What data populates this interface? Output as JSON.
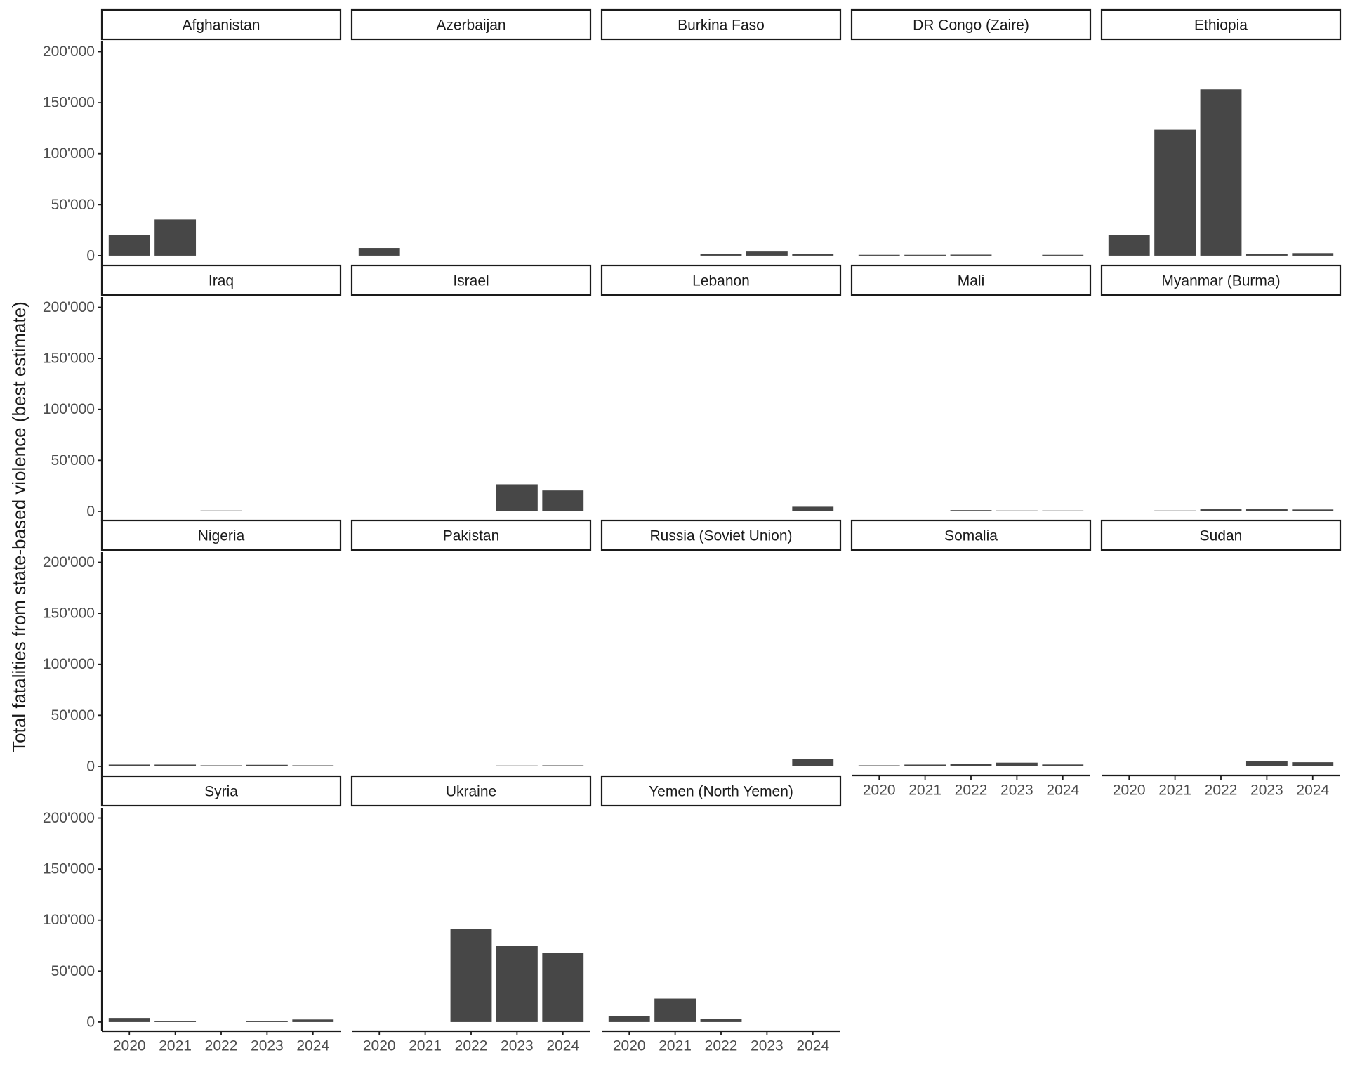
{
  "chart_data": {
    "type": "bar",
    "ylabel": "Total fatalities from state-based violence (best estimate)",
    "xlabel": "",
    "title": "",
    "categories": [
      "2020",
      "2021",
      "2022",
      "2023",
      "2024"
    ],
    "y_ticks": [
      0,
      50000,
      100000,
      150000,
      200000
    ],
    "y_tick_labels": [
      "0",
      "50'000",
      "100'000",
      "150'000",
      "200'000"
    ],
    "ylim": [
      -9000,
      210000
    ],
    "bar_color": "#474747",
    "facets": [
      {
        "name": "Afghanistan",
        "values": [
          20000,
          35500,
          null,
          null,
          null
        ]
      },
      {
        "name": "Azerbaijan",
        "values": [
          7500,
          null,
          null,
          null,
          null
        ]
      },
      {
        "name": "Burkina Faso",
        "values": [
          null,
          null,
          2000,
          4000,
          2000
        ]
      },
      {
        "name": "DR Congo (Zaire)",
        "values": [
          500,
          600,
          1000,
          null,
          400
        ]
      },
      {
        "name": "Ethiopia",
        "values": [
          20500,
          123500,
          163000,
          1500,
          2500
        ]
      },
      {
        "name": "Iraq",
        "values": [
          null,
          null,
          400,
          null,
          null
        ]
      },
      {
        "name": "Israel",
        "values": [
          null,
          null,
          null,
          26500,
          20500
        ]
      },
      {
        "name": "Lebanon",
        "values": [
          null,
          null,
          null,
          null,
          4500
        ]
      },
      {
        "name": "Mali",
        "values": [
          null,
          null,
          1200,
          700,
          500
        ]
      },
      {
        "name": "Myanmar (Burma)",
        "values": [
          null,
          500,
          2000,
          2000,
          1800
        ]
      },
      {
        "name": "Nigeria",
        "values": [
          1700,
          1700,
          1000,
          1500,
          1000
        ]
      },
      {
        "name": "Pakistan",
        "values": [
          null,
          null,
          null,
          500,
          1000
        ]
      },
      {
        "name": "Russia (Soviet Union)",
        "values": [
          null,
          null,
          null,
          null,
          7000
        ]
      },
      {
        "name": "Somalia",
        "values": [
          1000,
          1700,
          2600,
          3600,
          1800
        ]
      },
      {
        "name": "Sudan",
        "values": [
          null,
          null,
          null,
          5000,
          4000
        ]
      },
      {
        "name": "Syria",
        "values": [
          4000,
          1000,
          null,
          1000,
          2500
        ]
      },
      {
        "name": "Ukraine",
        "values": [
          null,
          null,
          91000,
          74500,
          68000
        ]
      },
      {
        "name": "Yemen (North Yemen)",
        "values": [
          6000,
          23000,
          3000,
          null,
          null
        ]
      }
    ]
  }
}
